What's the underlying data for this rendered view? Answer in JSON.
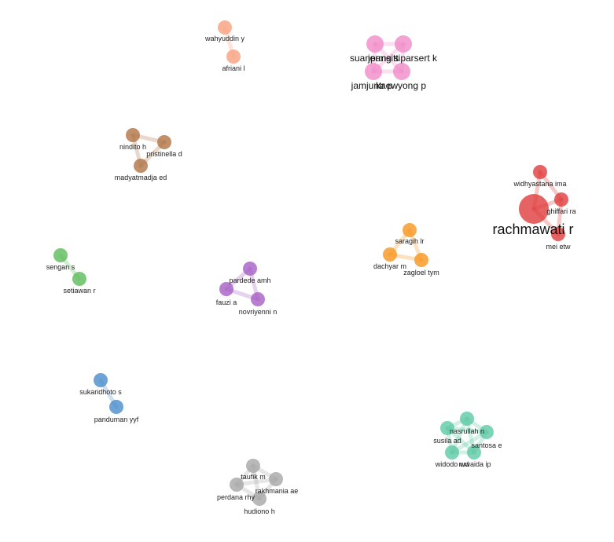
{
  "clusters": [
    {
      "color": "#f7a07e",
      "nodes": [
        {
          "id": "wahyuddin y",
          "label": "wahyuddin y"
        },
        {
          "id": "afriani l",
          "label": "afriani l"
        }
      ],
      "links": [
        [
          "wahyuddin y",
          "afriani l"
        ]
      ]
    },
    {
      "color": "#f08bc8",
      "nodes": [
        {
          "id": "suanpang s",
          "label": "suanpang s"
        },
        {
          "id": "jamjuntr p",
          "label": "jamjuntr p"
        },
        {
          "id": "jermsittiparsert k",
          "label": "jermsittiparsert k"
        },
        {
          "id": "kaewyong p",
          "label": "kaewyong p"
        }
      ],
      "links": [
        [
          "suanpang s",
          "jamjuntr p"
        ],
        [
          "suanpang s",
          "jermsittiparsert k"
        ],
        [
          "suanpang s",
          "kaewyong p"
        ],
        [
          "jamjuntr p",
          "jermsittiparsert k"
        ],
        [
          "jamjuntr p",
          "kaewyong p"
        ],
        [
          "jermsittiparsert k",
          "kaewyong p"
        ]
      ]
    },
    {
      "color": "#b07446",
      "nodes": [
        {
          "id": "nindito h",
          "label": "nindito h"
        },
        {
          "id": "pristinella d",
          "label": "pristinella d"
        },
        {
          "id": "madyatmadja ed",
          "label": "madyatmadja ed"
        }
      ],
      "links": [
        [
          "nindito h",
          "pristinella d"
        ],
        [
          "nindito h",
          "madyatmadja ed"
        ],
        [
          "pristinella d",
          "madyatmadja ed"
        ]
      ]
    },
    {
      "color": "#e03c3c",
      "nodes": [
        {
          "id": "widhyastana ima",
          "label": "widhyastana ima"
        },
        {
          "id": "ghiffari ra",
          "label": "ghiffari ra"
        },
        {
          "id": "rachmawati r",
          "label": "rachmawati r"
        },
        {
          "id": "mei etw",
          "label": "mei etw"
        }
      ],
      "links": [
        [
          "rachmawati r",
          "widhyastana ima"
        ],
        [
          "rachmawati r",
          "ghiffari ra"
        ],
        [
          "rachmawati r",
          "mei etw"
        ],
        [
          "widhyastana ima",
          "ghiffari ra"
        ],
        [
          "ghiffari ra",
          "mei etw"
        ]
      ]
    },
    {
      "color": "#5dbb5a",
      "nodes": [
        {
          "id": "sengan s",
          "label": "sengan s"
        },
        {
          "id": "setiawan r",
          "label": "setiawan r"
        }
      ],
      "links": [
        [
          "sengan s",
          "setiawan r"
        ]
      ]
    },
    {
      "color": "#a65fc4",
      "nodes": [
        {
          "id": "pardede amh",
          "label": "pardede amh"
        },
        {
          "id": "fauzi a",
          "label": "fauzi a"
        },
        {
          "id": "novriyenni n",
          "label": "novriyenni n"
        }
      ],
      "links": [
        [
          "pardede amh",
          "fauzi a"
        ],
        [
          "pardede amh",
          "novriyenni n"
        ],
        [
          "fauzi a",
          "novriyenni n"
        ]
      ]
    },
    {
      "color": "#f7961f",
      "nodes": [
        {
          "id": "saragih lr",
          "label": "saragih lr"
        },
        {
          "id": "dachyar m",
          "label": "dachyar m"
        },
        {
          "id": "zagloel tym",
          "label": "zagloel tym"
        }
      ],
      "links": [
        [
          "saragih lr",
          "dachyar m"
        ],
        [
          "saragih lr",
          "zagloel tym"
        ],
        [
          "dachyar m",
          "zagloel tym"
        ]
      ]
    },
    {
      "color": "#4a8ccc",
      "nodes": [
        {
          "id": "sukaridhoto s",
          "label": "sukaridhoto s"
        },
        {
          "id": "panduman yyf",
          "label": "panduman yyf"
        }
      ],
      "links": [
        [
          "sukaridhoto s",
          "panduman yyf"
        ]
      ]
    },
    {
      "color": "#5ec9a4",
      "nodes": [
        {
          "id": "nasrullah n",
          "label": "nasrullah n"
        },
        {
          "id": "susila ad",
          "label": "susila ad"
        },
        {
          "id": "santosa e",
          "label": "santosa e"
        },
        {
          "id": "widodo wd",
          "label": "widodo wd"
        },
        {
          "id": "ruwaida ip",
          "label": "ruwaida ip"
        }
      ],
      "links": [
        [
          "nasrullah n",
          "susila ad"
        ],
        [
          "nasrullah n",
          "santosa e"
        ],
        [
          "nasrullah n",
          "widodo wd"
        ],
        [
          "nasrullah n",
          "ruwaida ip"
        ],
        [
          "susila ad",
          "santosa e"
        ],
        [
          "susila ad",
          "widodo wd"
        ],
        [
          "susila ad",
          "ruwaida ip"
        ],
        [
          "santosa e",
          "widodo wd"
        ],
        [
          "santosa e",
          "ruwaida ip"
        ],
        [
          "widodo wd",
          "ruwaida ip"
        ]
      ]
    },
    {
      "color": "#a6a6a6",
      "nodes": [
        {
          "id": "taufik m",
          "label": "taufik m"
        },
        {
          "id": "rakhmania ae",
          "label": "rakhmania ae"
        },
        {
          "id": "perdana rhy",
          "label": "perdana rhy"
        },
        {
          "id": "hudiono h",
          "label": "hudiono h"
        }
      ],
      "links": [
        [
          "taufik m",
          "rakhmania ae"
        ],
        [
          "taufik m",
          "perdana rhy"
        ],
        [
          "taufik m",
          "hudiono h"
        ],
        [
          "rakhmania ae",
          "perdana rhy"
        ],
        [
          "rakhmania ae",
          "hudiono h"
        ],
        [
          "perdana rhy",
          "hudiono h"
        ]
      ]
    }
  ]
}
